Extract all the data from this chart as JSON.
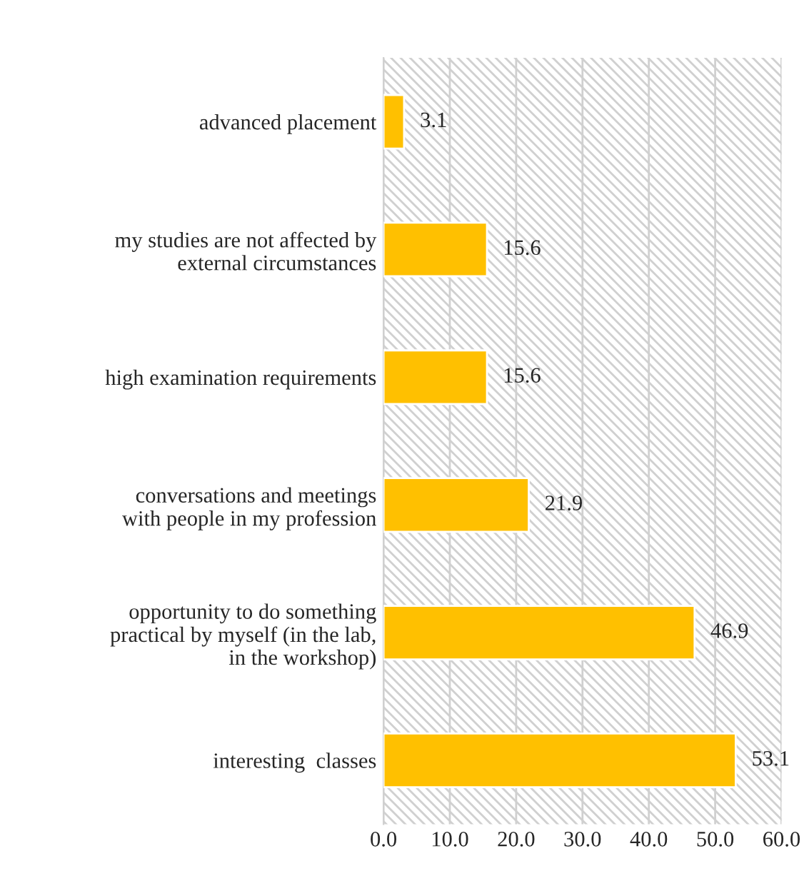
{
  "chart_data": {
    "type": "bar",
    "orientation": "horizontal",
    "categories": [
      "advanced placement",
      "my studies are not affected by\nexternal circumstances",
      "high examination requirements",
      "conversations and meetings\nwith people in my profession",
      "opportunity to do something\npractical by myself (in the lab,\nin the workshop)",
      "interesting  classes"
    ],
    "values": [
      3.1,
      15.6,
      15.6,
      21.9,
      46.9,
      53.1
    ],
    "color": "#ffc000",
    "xlim": [
      0,
      60
    ],
    "xticks": [
      {
        "value": 0,
        "label": "0.0"
      },
      {
        "value": 10,
        "label": "10.0"
      },
      {
        "value": 20,
        "label": "20.0"
      },
      {
        "value": 30,
        "label": "30.0"
      },
      {
        "value": 40,
        "label": "40.0"
      },
      {
        "value": 50,
        "label": "50.0"
      },
      {
        "value": 60,
        "label": "60.0"
      }
    ],
    "grid": "x",
    "data_labels": true
  }
}
